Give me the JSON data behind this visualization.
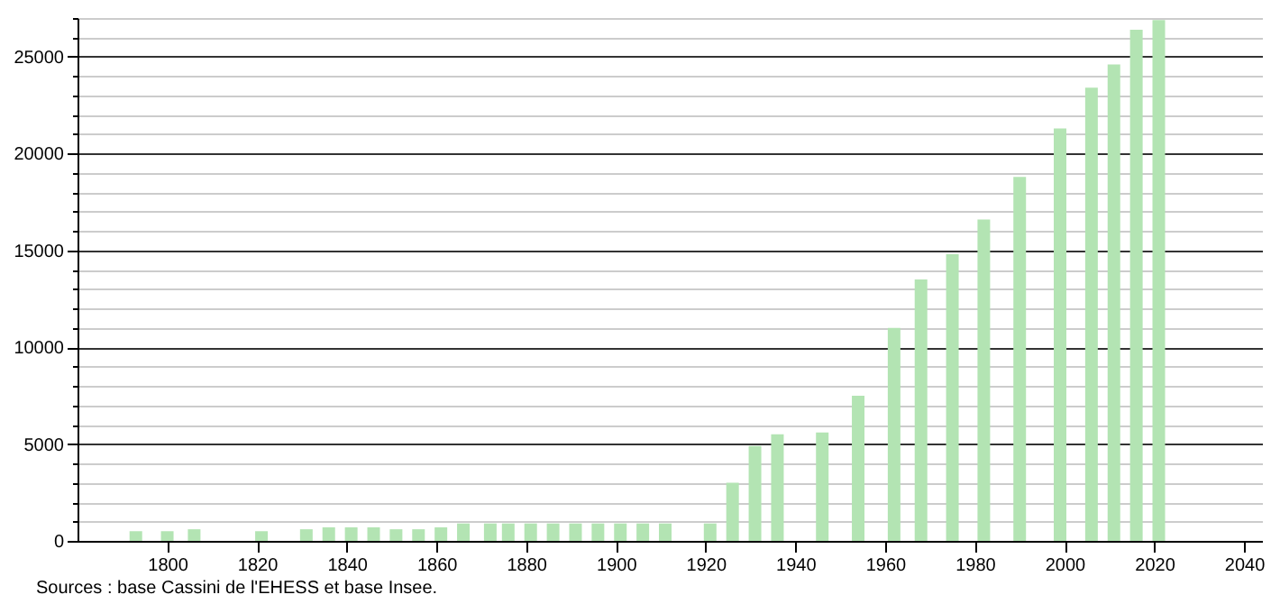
{
  "chart_data": {
    "type": "bar",
    "x": [
      1793,
      1800,
      1806,
      1821,
      1831,
      1836,
      1841,
      1846,
      1851,
      1856,
      1861,
      1866,
      1872,
      1876,
      1881,
      1886,
      1891,
      1896,
      1901,
      1906,
      1911,
      1921,
      1926,
      1931,
      1936,
      1946,
      1954,
      1962,
      1968,
      1975,
      1982,
      1990,
      1999,
      2006,
      2011,
      2016,
      2021
    ],
    "values": [
      500,
      500,
      600,
      500,
      600,
      700,
      700,
      700,
      600,
      600,
      700,
      900,
      900,
      900,
      900,
      900,
      900,
      900,
      900,
      900,
      900,
      900,
      3000,
      4900,
      5500,
      5600,
      7500,
      11000,
      13500,
      14800,
      16600,
      18800,
      21300,
      23400,
      24600,
      26400,
      26900
    ],
    "color": "#b3e4b3",
    "xlim": [
      1780,
      2044
    ],
    "xticks": [
      1800,
      1820,
      1840,
      1860,
      1880,
      1900,
      1920,
      1940,
      1960,
      1980,
      2000,
      2020,
      2040
    ],
    "ylim": [
      0,
      27000
    ],
    "yticks": [
      0,
      {
        "value": 1000,
        "label": null
      },
      {
        "value": 2000,
        "label": null
      },
      {
        "value": 3000,
        "label": null
      },
      {
        "value": 4000,
        "label": null
      },
      5000,
      {
        "value": 6000,
        "label": null
      },
      {
        "value": 7000,
        "label": null
      },
      {
        "value": 8000,
        "label": null
      },
      {
        "value": 9000,
        "label": null
      },
      10000,
      {
        "value": 11000,
        "label": null
      },
      {
        "value": 12000,
        "label": null
      },
      {
        "value": 13000,
        "label": null
      },
      {
        "value": 14000,
        "label": null
      },
      15000,
      {
        "value": 16000,
        "label": null
      },
      {
        "value": 17000,
        "label": null
      },
      {
        "value": 18000,
        "label": null
      },
      {
        "value": 19000,
        "label": null
      },
      20000,
      {
        "value": 21000,
        "label": null
      },
      {
        "value": 22000,
        "label": null
      },
      {
        "value": 23000,
        "label": null
      },
      {
        "value": 24000,
        "label": null
      },
      25000,
      {
        "value": 26000,
        "label": null
      },
      {
        "value": 27000,
        "label": null
      }
    ],
    "grid": "y",
    "annotations": [
      "Sources : base Cassini de l'EHESS et base Insee."
    ]
  }
}
